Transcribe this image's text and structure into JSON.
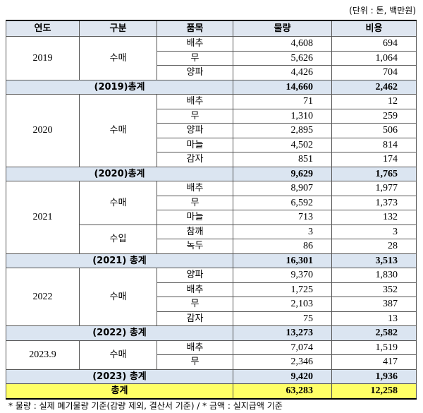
{
  "unit_note": "(단위 : 톤, 백만원)",
  "table": {
    "header": [
      "연도",
      "구분",
      "품목",
      "물량",
      "비용"
    ],
    "groups": [
      {
        "year": "2019",
        "sections": [
          {
            "type": "수매",
            "items": [
              [
                "배추",
                "4,608",
                "694"
              ],
              [
                "무",
                "5,626",
                "1,064"
              ],
              [
                "양파",
                "4,426",
                "704"
              ]
            ]
          }
        ],
        "subtotal": [
          "(2019)총계",
          "14,660",
          "2,462"
        ]
      },
      {
        "year": "2020",
        "sections": [
          {
            "type": "수매",
            "items": [
              [
                "배추",
                "71",
                "12"
              ],
              [
                "무",
                "1,310",
                "259"
              ],
              [
                "양파",
                "2,895",
                "506"
              ],
              [
                "마늘",
                "4,502",
                "814"
              ],
              [
                "감자",
                "851",
                "174"
              ]
            ]
          }
        ],
        "subtotal": [
          "(2020)총계",
          "9,629",
          "1,765"
        ]
      },
      {
        "year": "2021",
        "sections": [
          {
            "type": "수매",
            "items": [
              [
                "배추",
                "8,907",
                "1,977"
              ],
              [
                "무",
                "6,592",
                "1,373"
              ],
              [
                "마늘",
                "713",
                "132"
              ]
            ]
          },
          {
            "type": "수입",
            "items": [
              [
                "참깨",
                "3",
                "3"
              ],
              [
                "녹두",
                "86",
                "28"
              ]
            ]
          }
        ],
        "subtotal": [
          "(2021) 총계",
          "16,301",
          "3,513"
        ]
      },
      {
        "year": "2022",
        "sections": [
          {
            "type": "수매",
            "items": [
              [
                "양파",
                "9,370",
                "1,830"
              ],
              [
                "배추",
                "1,725",
                "352"
              ],
              [
                "무",
                "2,103",
                "387"
              ],
              [
                "감자",
                "75",
                "13"
              ]
            ]
          }
        ],
        "subtotal": [
          "(2022) 총계",
          "13,273",
          "2,582"
        ]
      },
      {
        "year": "2023.9",
        "sections": [
          {
            "type": "수매",
            "items": [
              [
                "배추",
                "7,074",
                "1,519"
              ],
              [
                "무",
                "2,346",
                "417"
              ]
            ]
          }
        ],
        "subtotal": [
          "(2023) 총계",
          "9,420",
          "1,936"
        ]
      }
    ],
    "total": [
      "총계",
      "63,283",
      "12,258"
    ]
  },
  "footnote": "* 물량 : 실제 폐기물량 기준(감량 제외, 결산서 기준) / * 금액 : 실지급액 기준"
}
